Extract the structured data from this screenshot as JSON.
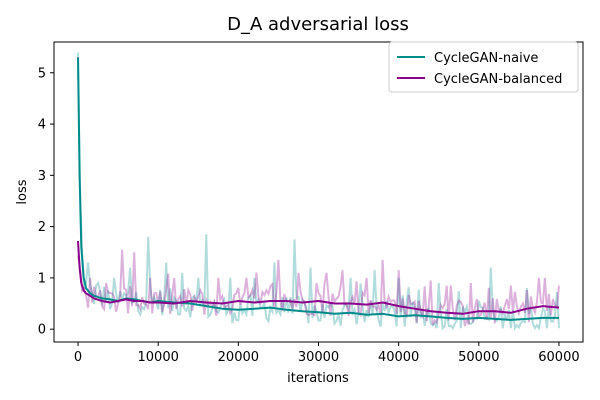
{
  "chart_data": {
    "type": "line",
    "title": "D_A adversarial loss",
    "xlabel": "iterations",
    "ylabel": "loss",
    "xlim": [
      -3000,
      63000
    ],
    "ylim": [
      -0.25,
      5.6
    ],
    "xticks": [
      0,
      10000,
      20000,
      30000,
      40000,
      50000,
      60000
    ],
    "yticks": [
      0,
      1,
      2,
      3,
      4,
      5
    ],
    "legend_position": "top-right",
    "series": [
      {
        "name": "CycleGAN-naive",
        "color": "#008b8b",
        "smoothed": {
          "x": [
            0,
            200,
            400,
            700,
            1000,
            1500,
            2000,
            3000,
            4000,
            5000,
            6000,
            7000,
            8000,
            9000,
            10000,
            12000,
            14000,
            16000,
            18000,
            20000,
            22000,
            24000,
            26000,
            28000,
            30000,
            32000,
            34000,
            36000,
            38000,
            40000,
            42000,
            44000,
            46000,
            48000,
            50000,
            52000,
            54000,
            56000,
            58000,
            60000
          ],
          "y": [
            5.3,
            3.0,
            1.6,
            1.0,
            0.8,
            0.7,
            0.65,
            0.6,
            0.58,
            0.55,
            0.6,
            0.58,
            0.55,
            0.52,
            0.55,
            0.52,
            0.5,
            0.45,
            0.4,
            0.38,
            0.4,
            0.42,
            0.38,
            0.35,
            0.33,
            0.3,
            0.32,
            0.28,
            0.3,
            0.25,
            0.27,
            0.25,
            0.22,
            0.2,
            0.22,
            0.2,
            0.18,
            0.2,
            0.22,
            0.22
          ]
        },
        "raw_spikes": [
          [
            1200,
            1.3
          ],
          [
            2500,
            0.9
          ],
          [
            4500,
            1.0
          ],
          [
            6500,
            1.2
          ],
          [
            8800,
            1.8
          ],
          [
            11000,
            1.3
          ],
          [
            13000,
            1.1
          ],
          [
            15000,
            1.0
          ],
          [
            16000,
            1.85
          ],
          [
            19000,
            1.0
          ],
          [
            22000,
            1.0
          ],
          [
            24500,
            1.3
          ],
          [
            27000,
            1.75
          ],
          [
            29000,
            1.2
          ],
          [
            34000,
            1.0
          ],
          [
            37000,
            1.15
          ],
          [
            40000,
            1.0
          ],
          [
            45000,
            0.9
          ],
          [
            51500,
            1.2
          ],
          [
            56000,
            0.8
          ]
        ]
      },
      {
        "name": "CycleGAN-balanced",
        "color": "#8b008b",
        "smoothed": {
          "x": [
            0,
            200,
            400,
            700,
            1000,
            1500,
            2000,
            3000,
            4000,
            5000,
            6000,
            7000,
            8000,
            9000,
            10000,
            12000,
            14000,
            16000,
            18000,
            20000,
            22000,
            24000,
            26000,
            28000,
            30000,
            32000,
            34000,
            36000,
            38000,
            40000,
            42000,
            44000,
            46000,
            48000,
            50000,
            52000,
            54000,
            56000,
            58000,
            60000
          ],
          "y": [
            1.72,
            1.2,
            0.9,
            0.75,
            0.7,
            0.65,
            0.6,
            0.55,
            0.52,
            0.55,
            0.58,
            0.55,
            0.55,
            0.52,
            0.52,
            0.5,
            0.55,
            0.52,
            0.5,
            0.55,
            0.52,
            0.55,
            0.55,
            0.52,
            0.55,
            0.5,
            0.5,
            0.48,
            0.52,
            0.45,
            0.4,
            0.35,
            0.32,
            0.3,
            0.35,
            0.35,
            0.32,
            0.4,
            0.45,
            0.42
          ]
        },
        "raw_spikes": [
          [
            1500,
            1.0
          ],
          [
            3500,
            0.9
          ],
          [
            5500,
            1.55
          ],
          [
            7000,
            1.5
          ],
          [
            9000,
            1.0
          ],
          [
            12000,
            1.0
          ],
          [
            17500,
            1.0
          ],
          [
            21000,
            1.0
          ],
          [
            25000,
            1.35
          ],
          [
            27500,
            1.1
          ],
          [
            31000,
            1.1
          ],
          [
            33000,
            1.15
          ],
          [
            36000,
            1.0
          ],
          [
            38000,
            1.35
          ],
          [
            40000,
            1.15
          ],
          [
            44000,
            0.95
          ],
          [
            49000,
            0.9
          ],
          [
            54000,
            0.85
          ],
          [
            57500,
            1.0
          ],
          [
            60000,
            0.85
          ]
        ]
      }
    ]
  }
}
